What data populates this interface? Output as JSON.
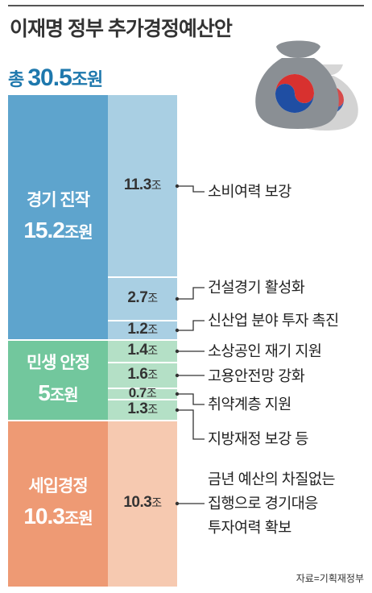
{
  "title": "이재명 정부 추가경정예산안",
  "total": {
    "prefix": "총 ",
    "value": "30.5",
    "unit": "조원"
  },
  "source": "자료=기획재정부",
  "colors": {
    "stimulus": "#5ea4cd",
    "stimulus_light": "#a9cfe3",
    "livelihood": "#72c79d",
    "livelihood_light": "#b4e0c6",
    "tax": "#ee9a74",
    "tax_light": "#f6c9b0",
    "total_text": "#1e78ad"
  },
  "icon": "money-bags-with-taegeuk-icon",
  "chart_data": {
    "type": "bar",
    "stacked": true,
    "title": "이재명 정부 추가경정예산안",
    "total": 30.5,
    "unit": "조원",
    "groups": [
      {
        "name": "경기 진작",
        "total": 15.2,
        "total_label": "15.2",
        "unit": "조원",
        "items": [
          {
            "label": "소비여력 보강",
            "value": 11.3,
            "value_label": "11.3",
            "unit": "조"
          },
          {
            "label": "건설경기 활성화",
            "value": 2.7,
            "value_label": "2.7",
            "unit": "조"
          },
          {
            "label": "신산업 분야 투자 촉진",
            "value": 1.2,
            "value_label": "1.2",
            "unit": "조"
          }
        ]
      },
      {
        "name": "민생 안정",
        "total": 5,
        "total_label": "5",
        "unit": "조원",
        "items": [
          {
            "label": "소상공인 재기 지원",
            "value": 1.4,
            "value_label": "1.4",
            "unit": "조"
          },
          {
            "label": "고용안전망 강화",
            "value": 1.6,
            "value_label": "1.6",
            "unit": "조"
          },
          {
            "label": "취약계층 지원",
            "value": 0.7,
            "value_label": "0.7",
            "unit": "조"
          },
          {
            "label": "지방재정 보강 등",
            "value": 1.3,
            "value_label": "1.3",
            "unit": "조"
          }
        ]
      },
      {
        "name": "세입경정",
        "total": 10.3,
        "total_label": "10.3",
        "unit": "조원",
        "items": [
          {
            "label": "금년 예산의 차질없는\n집행으로 경기대응\n투자여력 확보",
            "value": 10.3,
            "value_label": "10.3",
            "unit": "조"
          }
        ]
      }
    ]
  }
}
